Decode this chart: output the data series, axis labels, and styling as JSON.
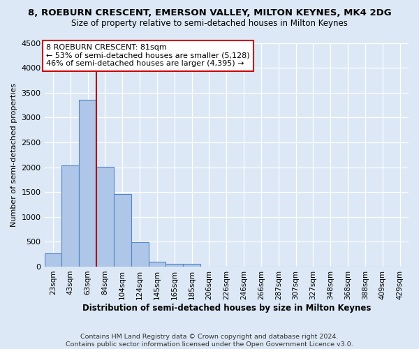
{
  "title_line1": "8, ROEBURN CRESCENT, EMERSON VALLEY, MILTON KEYNES, MK4 2DG",
  "title_line2": "Size of property relative to semi-detached houses in Milton Keynes",
  "xlabel": "Distribution of semi-detached houses by size in Milton Keynes",
  "ylabel": "Number of semi-detached properties",
  "footnote1": "Contains HM Land Registry data © Crown copyright and database right 2024.",
  "footnote2": "Contains public sector information licensed under the Open Government Licence v3.0.",
  "bar_labels": [
    "23sqm",
    "43sqm",
    "63sqm",
    "84sqm",
    "104sqm",
    "124sqm",
    "145sqm",
    "165sqm",
    "185sqm",
    "206sqm",
    "226sqm",
    "246sqm",
    "266sqm",
    "287sqm",
    "307sqm",
    "327sqm",
    "348sqm",
    "368sqm",
    "388sqm",
    "409sqm",
    "429sqm"
  ],
  "bar_values": [
    270,
    2030,
    3360,
    2010,
    1460,
    490,
    100,
    60,
    50,
    0,
    0,
    0,
    0,
    0,
    0,
    0,
    0,
    0,
    0,
    0,
    0
  ],
  "bar_color": "#aec6e8",
  "bar_edge_color": "#5585c5",
  "background_color": "#dce8f5",
  "grid_color": "#ffffff",
  "vline_color": "#aa0000",
  "vline_x": 2.5,
  "annotation_text": "8 ROEBURN CRESCENT: 81sqm\n← 53% of semi-detached houses are smaller (5,128)\n46% of semi-detached houses are larger (4,395) →",
  "annotation_box_color": "#ffffff",
  "annotation_box_edge": "#cc0000",
  "ylim": [
    0,
    4500
  ],
  "yticks": [
    0,
    500,
    1000,
    1500,
    2000,
    2500,
    3000,
    3500,
    4000,
    4500
  ],
  "title1_fontsize": 9.5,
  "title2_fontsize": 8.5,
  "ylabel_fontsize": 8,
  "xlabel_fontsize": 8.5,
  "tick_fontsize": 8,
  "annot_fontsize": 8,
  "footnote_fontsize": 6.8
}
